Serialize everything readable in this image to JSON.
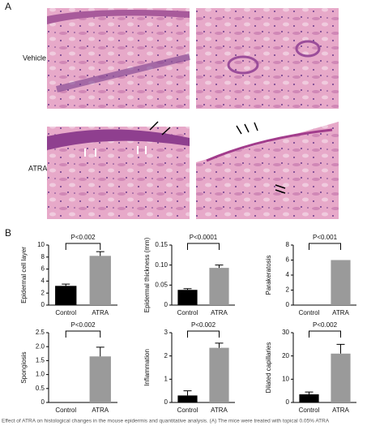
{
  "panel_labels": [
    "A",
    "B"
  ],
  "row_labels": [
    "Vehicle",
    "ATRA"
  ],
  "caption": "Effect of ATRA on histological changes in the mouse epidermis and quantitative analysis. (A) The mice were treated with topical 0.05% ATRA",
  "chart_data": [
    {
      "type": "bar",
      "y_label": "Epidermal cell layer",
      "categories": [
        "Control",
        "ATRA"
      ],
      "values": [
        3.2,
        8.2
      ],
      "errors": [
        0.3,
        0.7
      ],
      "colors": [
        "#000000",
        "#9a9a9a"
      ],
      "ylim": [
        0,
        10
      ],
      "yticks": [
        0,
        2,
        4,
        6,
        8,
        10
      ],
      "annotation": "P<0.002"
    },
    {
      "type": "bar",
      "y_label": "Epidermal thickness (mm)",
      "categories": [
        "Control",
        "ATRA"
      ],
      "values": [
        0.038,
        0.093
      ],
      "errors": [
        0.003,
        0.007
      ],
      "colors": [
        "#000000",
        "#9a9a9a"
      ],
      "ylim": [
        0,
        0.15
      ],
      "yticks": [
        0,
        0.05,
        {
          "value": 0.1,
          "label": "0.10"
        },
        0.15
      ],
      "annotation": "P<0.0001"
    },
    {
      "type": "bar",
      "y_label": "Parakeratosis",
      "categories": [
        "Control",
        "ATRA"
      ],
      "values": [
        0,
        6
      ],
      "errors": [
        0,
        0
      ],
      "colors": [
        "#000000",
        "#9a9a9a"
      ],
      "ylim": [
        0,
        8
      ],
      "yticks": [
        0,
        2,
        4,
        6,
        8
      ],
      "annotation": "P<0.001"
    },
    {
      "type": "bar",
      "y_label": "Spongiosis",
      "categories": [
        "Control",
        "ATRA"
      ],
      "values": [
        0,
        1.65
      ],
      "errors": [
        0,
        0.33
      ],
      "colors": [
        "#000000",
        "#9a9a9a"
      ],
      "ylim": [
        0,
        2.5
      ],
      "yticks": [
        0,
        0.5,
        {
          "value": 1,
          "label": "1.0"
        },
        1.5,
        {
          "value": 2,
          "label": "2.0"
        },
        2.5
      ],
      "annotation": "P<0.002"
    },
    {
      "type": "bar",
      "y_label": "Inflammation",
      "categories": [
        "Control",
        "ATRA"
      ],
      "values": [
        0.3,
        2.35
      ],
      "errors": [
        0.2,
        0.2
      ],
      "colors": [
        "#000000",
        "#9a9a9a"
      ],
      "ylim": [
        0,
        3
      ],
      "yticks": [
        0,
        1,
        2,
        3
      ],
      "annotation": "P<0.002"
    },
    {
      "type": "bar",
      "y_label": "Dilated capillaries",
      "categories": [
        "Control",
        "ATRA"
      ],
      "values": [
        3.5,
        21
      ],
      "errors": [
        1,
        4
      ],
      "colors": [
        "#000000",
        "#9a9a9a"
      ],
      "ylim": [
        0,
        30
      ],
      "yticks": [
        0,
        10,
        20,
        30
      ],
      "annotation": "P<0.002"
    }
  ]
}
